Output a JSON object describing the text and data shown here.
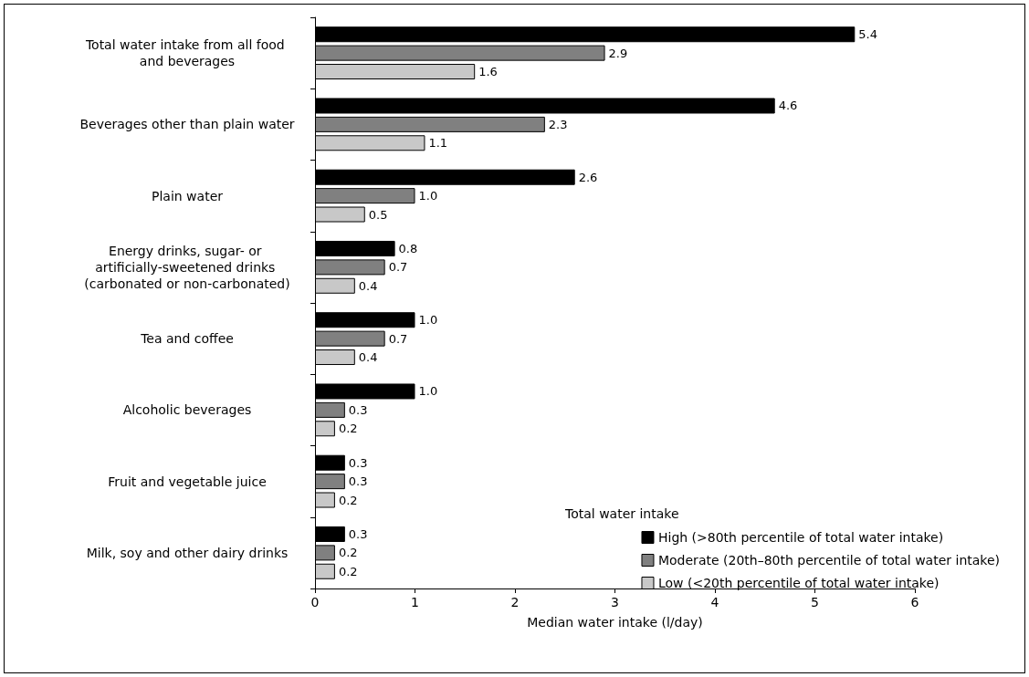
{
  "chart_data": {
    "type": "bar",
    "orientation": "horizontal",
    "categories": [
      "Total water intake from all food and beverages",
      "Beverages other than plain water",
      "Plain water",
      "Energy drinks, sugar- or artificially-sweetened drinks (carbonated or non-carbonated)",
      "Tea and coffee",
      "Alcoholic beverages",
      "Fruit and vegetable juice",
      "Milk, soy and other dairy drinks"
    ],
    "series": [
      {
        "name": "High (>80th percentile of total water intake)",
        "color": "#000000",
        "values": [
          5.4,
          4.6,
          2.6,
          0.8,
          1.0,
          1.0,
          0.3,
          0.3
        ],
        "value_labels": [
          "5.4",
          "4.6",
          "2.6",
          "0.8",
          "1.0",
          "1.0",
          "0.3",
          "0.3"
        ]
      },
      {
        "name": "Moderate (20th–80th percentile of total water intake)",
        "color": "#808080",
        "values": [
          2.9,
          2.3,
          1.0,
          0.7,
          0.7,
          0.3,
          0.3,
          0.2
        ],
        "value_labels": [
          "2.9",
          "2.3",
          "1.0",
          "0.7",
          "0.7",
          "0.3",
          "0.3",
          "0.2"
        ]
      },
      {
        "name": "Low (<20th percentile of total water intake)",
        "color": "#c8c8c8",
        "values": [
          1.6,
          1.1,
          0.5,
          0.4,
          0.4,
          0.2,
          0.2,
          0.2
        ],
        "value_labels": [
          "1.6",
          "1.1",
          "0.5",
          "0.4",
          "0.4",
          "0.2",
          "0.2",
          "0.2"
        ]
      }
    ],
    "xlabel": "Median water intake (l/day)",
    "legend_title": "Total water intake",
    "legend": "bottom right",
    "xlim": [
      0,
      6
    ],
    "xticks": [
      0,
      1,
      2,
      3,
      4,
      5,
      6
    ],
    "grid": false
  }
}
